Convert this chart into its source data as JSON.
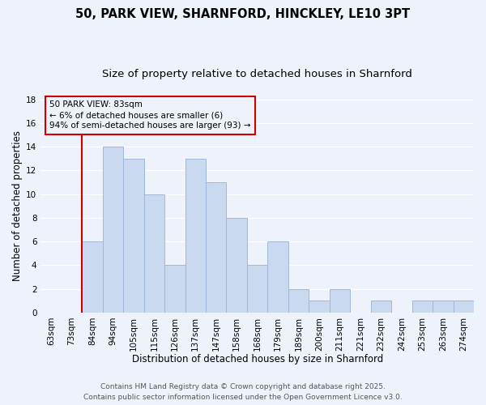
{
  "title": "50, PARK VIEW, SHARNFORD, HINCKLEY, LE10 3PT",
  "subtitle": "Size of property relative to detached houses in Sharnford",
  "xlabel": "Distribution of detached houses by size in Sharnford",
  "ylabel": "Number of detached properties",
  "bin_labels": [
    "63sqm",
    "73sqm",
    "84sqm",
    "94sqm",
    "105sqm",
    "115sqm",
    "126sqm",
    "137sqm",
    "147sqm",
    "158sqm",
    "168sqm",
    "179sqm",
    "189sqm",
    "200sqm",
    "211sqm",
    "221sqm",
    "232sqm",
    "242sqm",
    "253sqm",
    "263sqm",
    "274sqm"
  ],
  "bar_values": [
    0,
    0,
    6,
    14,
    13,
    10,
    4,
    13,
    11,
    8,
    4,
    6,
    2,
    1,
    2,
    0,
    1,
    0,
    1,
    1,
    1
  ],
  "bar_color": "#c8d9f0",
  "bar_edge_color": "#a0b8d8",
  "highlight_bar_index": 2,
  "highlight_line_color": "#cc0000",
  "ylim": [
    0,
    18
  ],
  "yticks": [
    0,
    2,
    4,
    6,
    8,
    10,
    12,
    14,
    16,
    18
  ],
  "annotation_title": "50 PARK VIEW: 83sqm",
  "annotation_line1": "← 6% of detached houses are smaller (6)",
  "annotation_line2": "94% of semi-detached houses are larger (93) →",
  "annotation_box_edge": "#cc0000",
  "footer_line1": "Contains HM Land Registry data © Crown copyright and database right 2025.",
  "footer_line2": "Contains public sector information licensed under the Open Government Licence v3.0.",
  "background_color": "#eef2fb",
  "grid_color": "#ffffff",
  "title_fontsize": 10.5,
  "subtitle_fontsize": 9.5,
  "axis_label_fontsize": 8.5,
  "tick_fontsize": 7.5,
  "footer_fontsize": 6.5
}
